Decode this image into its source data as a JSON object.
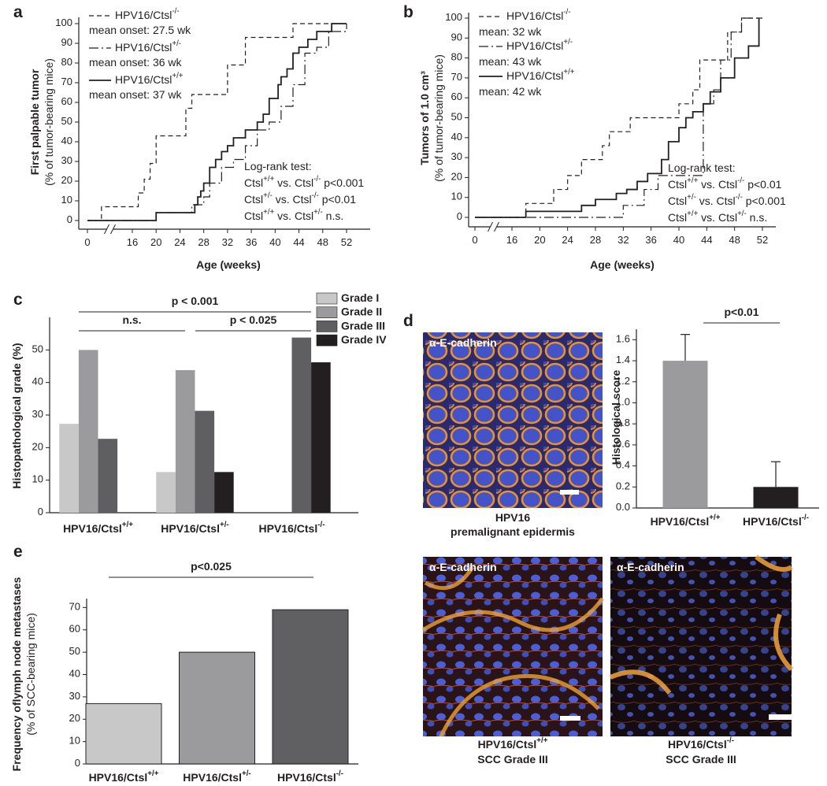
{
  "chart_data": [
    {
      "panel": "a",
      "type": "line",
      "drawstyle": "steps-post",
      "axis_break": true,
      "xlabel": "Age (weeks)",
      "ylabel": "First palpable tumor",
      "ylabel_sub": "(% of tumor-bearing mice)",
      "xlim": [
        0,
        52
      ],
      "ylim": [
        0,
        100
      ],
      "xticks": [
        0,
        16,
        20,
        24,
        28,
        32,
        36,
        40,
        44,
        48,
        52
      ],
      "yticks": [
        0,
        10,
        20,
        30,
        40,
        50,
        60,
        70,
        80,
        90,
        100
      ],
      "series": [
        {
          "name": "HPV16/Ctsl-/-",
          "note": "mean onset: 27.5 wk",
          "linestyle": "dashed",
          "color": "#231f20",
          "x": [
            0,
            5,
            17,
            18,
            19,
            20,
            25,
            26,
            32,
            35,
            43,
            52
          ],
          "values": [
            0,
            7,
            14,
            21,
            29,
            43,
            57,
            64,
            79,
            93,
            100,
            100
          ]
        },
        {
          "name": "HPV16/Ctsl+/-",
          "note": "mean onset: 36 wk",
          "linestyle": "dashdot",
          "color": "#231f20",
          "x": [
            0,
            20,
            26,
            28,
            29,
            31,
            33,
            35,
            37,
            39,
            41,
            43,
            45,
            47,
            49,
            52
          ],
          "values": [
            0,
            4,
            8,
            12,
            19,
            27,
            31,
            38,
            46,
            50,
            58,
            69,
            85,
            88,
            96,
            100
          ]
        },
        {
          "name": "HPV16/Ctsl+/+",
          "note": "mean onset: 37 wk",
          "linestyle": "solid",
          "color": "#231f20",
          "x": [
            0,
            20,
            26.5,
            27,
            27.5,
            28,
            29,
            30,
            31,
            32,
            33,
            35,
            37,
            38,
            39,
            40.5,
            41,
            42,
            43,
            44,
            45.5,
            47,
            49.5,
            52
          ],
          "values": [
            0,
            4,
            8,
            12,
            15,
            19,
            27,
            31,
            35,
            38,
            42,
            46,
            50,
            54,
            62,
            69,
            73,
            77,
            85,
            88,
            92,
            96,
            100,
            100
          ]
        }
      ],
      "annotations": [
        "Log-rank test:",
        "Ctsl+/+ vs. Ctsl-/- p<0.001",
        "Ctsl+/- vs. Ctsl-/- p<0.01",
        "Ctsl+/+ vs. Ctsl+/- n.s."
      ]
    },
    {
      "panel": "b",
      "type": "line",
      "drawstyle": "steps-post",
      "axis_break": true,
      "xlabel": "Age (weeks)",
      "ylabel": "Tumors of 1.0 cm³",
      "ylabel_sub": "(% of tumor-bearing mice)",
      "xlim": [
        0,
        52
      ],
      "ylim": [
        0,
        100
      ],
      "xticks": [
        0,
        16,
        20,
        24,
        28,
        32,
        36,
        40,
        44,
        48,
        52
      ],
      "yticks": [
        0,
        10,
        20,
        30,
        40,
        50,
        60,
        70,
        80,
        90,
        100
      ],
      "series": [
        {
          "name": "HPV16/Ctsl-/-",
          "note": "mean: 32 wk",
          "linestyle": "dashed",
          "color": "#231f20",
          "x": [
            0,
            18,
            22,
            24,
            26,
            29,
            30,
            33,
            40,
            42,
            43,
            47,
            49,
            52
          ],
          "values": [
            0,
            7,
            14,
            21,
            29,
            36,
            43,
            50,
            57,
            64,
            79,
            93,
            100,
            100
          ]
        },
        {
          "name": "HPV16/Ctsl+/-",
          "note": "mean: 43 wk",
          "linestyle": "dashdot",
          "color": "#231f20",
          "x": [
            0,
            32,
            35,
            37,
            43.5,
            45,
            46,
            47.5,
            49,
            52
          ],
          "values": [
            0,
            6,
            14,
            21,
            57,
            64,
            79,
            93,
            100,
            100
          ]
        },
        {
          "name": "HPV16/Ctsl+/+",
          "note": "mean: 42 wk",
          "linestyle": "solid",
          "color": "#231f20",
          "x": [
            0,
            18,
            26,
            28,
            31,
            32.5,
            34,
            35.5,
            37.5,
            38.5,
            40,
            41,
            42,
            43.5,
            44.5,
            46,
            48,
            50,
            51.5
          ],
          "values": [
            0,
            3,
            6,
            9,
            12,
            14,
            18,
            22,
            29,
            38,
            45,
            50,
            53,
            57,
            63,
            70,
            80,
            86,
            100
          ]
        }
      ],
      "annotations": [
        "Log-rank test:",
        "Ctsl+/+ vs. Ctsl-/- p<0.01",
        "Ctsl+/- vs. Ctsl-/- p<0.001",
        "Ctsl+/+ vs. Ctsl+/- n.s."
      ]
    },
    {
      "panel": "c",
      "type": "grouped_bar",
      "ylabel": "Histopathological grade (%)",
      "categories": [
        "HPV16/Ctsl+/+",
        "HPV16/Ctsl+/-",
        "HPV16/Ctsl-/-"
      ],
      "series": [
        {
          "name": "Grade I",
          "color": "#c8c8c9",
          "values": [
            27.3,
            12.5,
            0
          ]
        },
        {
          "name": "Grade II",
          "color": "#9b9b9d",
          "values": [
            50,
            43.8,
            0
          ]
        },
        {
          "name": "Grade III",
          "color": "#5f5f61",
          "values": [
            22.7,
            31.3,
            53.8
          ]
        },
        {
          "name": "Grade IV",
          "color": "#231f20",
          "values": [
            0,
            12.5,
            46.2
          ]
        }
      ],
      "ylim": [
        0,
        60
      ],
      "yticks": [
        0,
        10,
        20,
        30,
        40,
        50
      ],
      "brackets": [
        {
          "text": "p < 0.001",
          "span": [
            0,
            2
          ]
        },
        {
          "text": "n.s.",
          "span": [
            0,
            1
          ]
        },
        {
          "text": "p < 0.025",
          "span": [
            1,
            2
          ]
        }
      ]
    },
    {
      "panel": "d",
      "type": "bar",
      "ylabel": "Histological score",
      "categories": [
        "HPV16/Ctsl+/+",
        "HPV16/Ctsl-/-"
      ],
      "values": [
        1.4,
        0.2
      ],
      "errors": [
        0.25,
        0.24
      ],
      "colors": [
        "#9b9b9d",
        "#231f20"
      ],
      "ylim": [
        0,
        1.7
      ],
      "yticks": [
        {
          "value": 0,
          "label": "0.0"
        },
        0.2,
        0.4,
        0.6,
        0.8,
        {
          "value": 1,
          "label": "1.0"
        },
        1.2,
        1.4,
        1.6
      ],
      "brackets": [
        {
          "text": "p<0.01",
          "span": [
            0,
            1
          ]
        }
      ]
    },
    {
      "panel": "e",
      "type": "bar",
      "ylabel": "Frequency oflymph node metastases",
      "ylabel_sub": "(% of SCC-bearing mice)",
      "categories": [
        "HPV16/Ctsl+/+",
        "HPV16/Ctsl+/-",
        "HPV16/Ctsl-/-"
      ],
      "values": [
        27,
        50,
        69
      ],
      "colors": [
        "#c8c8c9",
        "#9b9b9d",
        "#606062"
      ],
      "edgecolor": "#231f20",
      "ylim": [
        0,
        74
      ],
      "yticks": [
        0,
        10,
        20,
        30,
        40,
        50,
        60,
        70
      ],
      "brackets": [
        {
          "text": "p<0.025",
          "span": [
            0,
            2
          ]
        }
      ]
    }
  ],
  "images": [
    {
      "label": "α-E-cadherin",
      "caption": [
        "HPV16",
        "premalignant epidermis"
      ]
    },
    {
      "label": "α-E-cadherin",
      "caption": [
        "HPV16/Ctsl+/+",
        "SCC Grade III"
      ]
    },
    {
      "label": "α-E-cadherin",
      "caption": [
        "HPV16/Ctsl-/-",
        "SCC Grade III"
      ]
    }
  ]
}
